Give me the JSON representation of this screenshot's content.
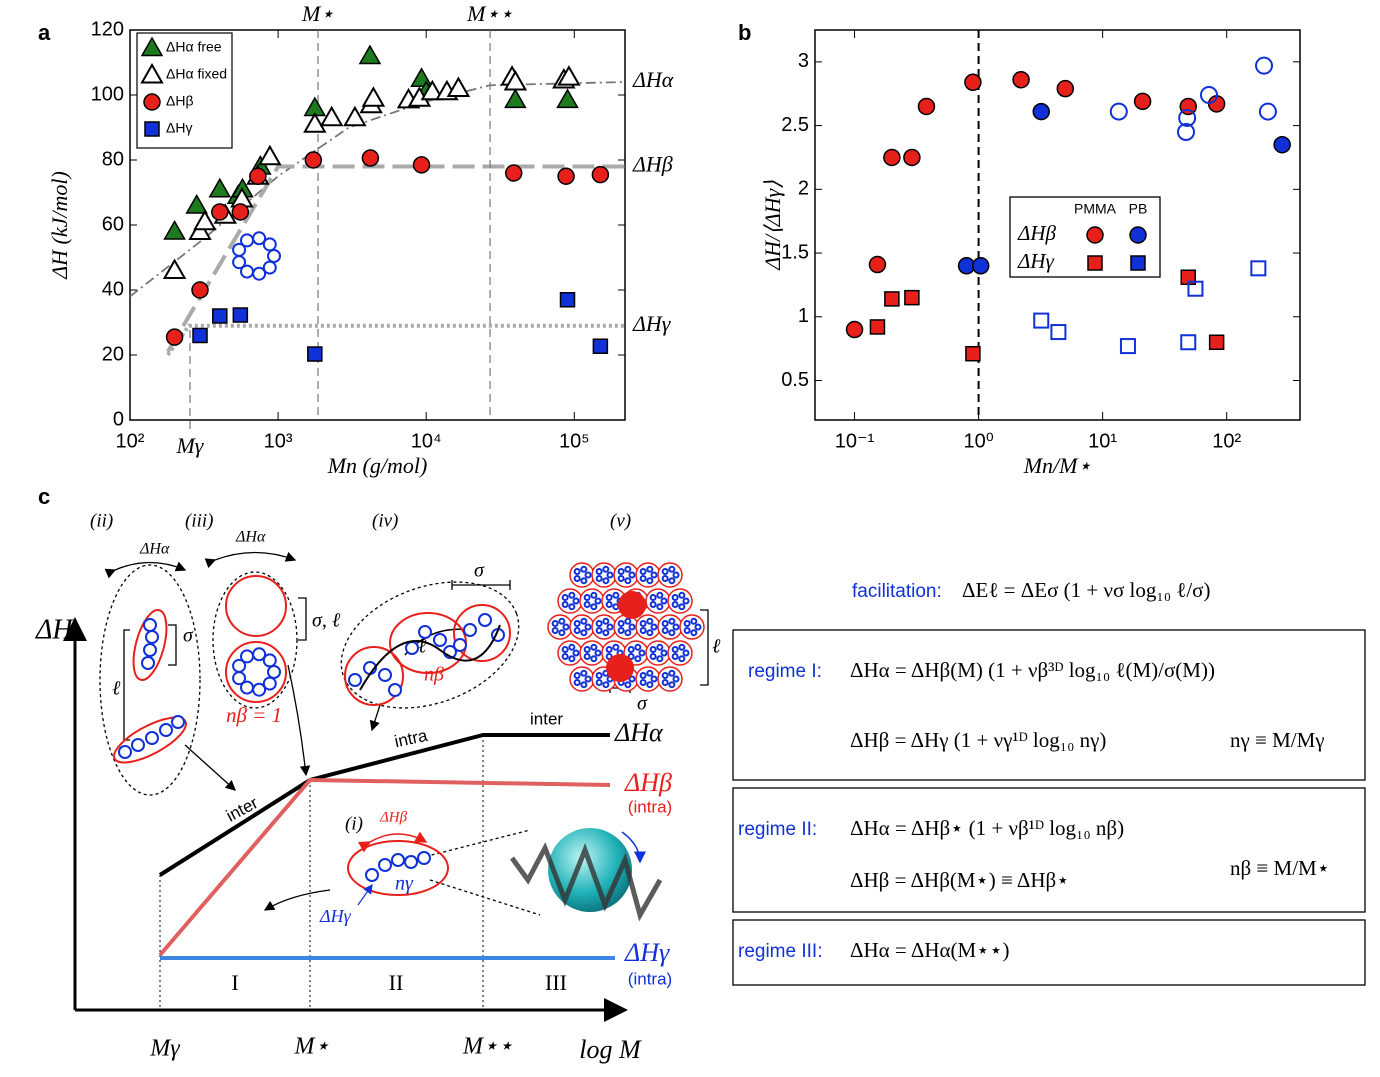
{
  "chart_data": [
    {
      "type": "scatter",
      "panel": "a",
      "xscale": "log",
      "xlim": [
        100,
        220000
      ],
      "ylim": [
        0,
        120
      ],
      "xticks": [
        {
          "value": 100,
          "label": "10²"
        },
        {
          "value": 1000,
          "label": "10³"
        },
        {
          "value": 10000,
          "label": "10⁴"
        },
        {
          "value": 100000,
          "label": "10⁵"
        }
      ],
      "yticks": [
        0,
        20,
        40,
        60,
        80,
        100,
        120
      ],
      "xlabel": "Mn (g/mol)",
      "ylabel": "ΔH (kJ/mol)",
      "series": [
        {
          "name": "ΔHα free",
          "marker": "triangle",
          "filled": true,
          "color": "#1e7a1e",
          "x": [
            200,
            282,
            404,
            537,
            575,
            759,
            1770,
            4170,
            9300,
            10000,
            40000,
            90000
          ],
          "values": [
            58,
            66,
            71,
            69,
            71,
            78,
            96,
            112,
            105,
            101,
            98.5,
            98.5
          ]
        },
        {
          "name": "ΔHα fixed",
          "marker": "triangle",
          "filled": false,
          "color": "#000000",
          "x": [
            200,
            297,
            320,
            440,
            570,
            730,
            880,
            1770,
            2300,
            3300,
            4250,
            4400,
            7600,
            9000,
            11000,
            13800,
            16500,
            38000,
            40000,
            85000,
            92000
          ],
          "values": [
            46,
            58,
            61,
            63,
            68,
            75,
            81,
            91,
            93,
            93,
            97,
            99,
            98.5,
            99,
            101,
            101,
            102,
            105.5,
            104,
            104.6,
            105.5
          ]
        },
        {
          "name": "ΔHβ",
          "marker": "circle",
          "filled": true,
          "color": "#e8201c",
          "x": [
            200,
            297,
            404,
            556,
            730,
            1730,
            4200,
            9300,
            39000,
            88000,
            150000
          ],
          "values": [
            25.5,
            40,
            64,
            64,
            75,
            80,
            80.6,
            78.5,
            76,
            75,
            75.5
          ]
        },
        {
          "name": "ΔHγ",
          "marker": "square",
          "filled": true,
          "color": "#1030d8",
          "x": [
            297,
            404,
            556,
            1770,
            90000,
            150000
          ],
          "values": [
            26,
            32,
            32.3,
            20.3,
            37,
            22.7
          ]
        }
      ],
      "fits": [
        {
          "style": "dashdot",
          "color": "#777777",
          "x": [
            100,
            300,
            1000,
            3000,
            10000,
            27000,
            220000
          ],
          "values": [
            38,
            55,
            75,
            90,
            98,
            103,
            104
          ]
        },
        {
          "style": "dash",
          "color": "#aaaaaa",
          "x": [
            180,
            1000,
            220000
          ],
          "values": [
            21,
            78,
            78
          ]
        },
        {
          "style": "dot",
          "color": "#aaaaaa",
          "x": [
            180,
            250,
            220000
          ],
          "values": [
            20,
            29,
            29
          ]
        }
      ],
      "vlines": [
        {
          "x": 254,
          "label": "Mγ",
          "side": "bottom"
        },
        {
          "x": 1860,
          "label": "M⋆",
          "side": "top"
        },
        {
          "x": 27000,
          "label": "M⋆⋆",
          "side": "top"
        }
      ],
      "annotations": [
        {
          "text": "ΔHα",
          "y": 104
        },
        {
          "text": "ΔHβ",
          "y": 78
        },
        {
          "text": "ΔHγ",
          "y": 29
        }
      ]
    },
    {
      "type": "scatter",
      "panel": "b",
      "xscale": "log",
      "xlim": [
        0.048,
        390
      ],
      "ylim": [
        0.19,
        3.25
      ],
      "xticks": [
        {
          "value": 0.1,
          "label": "10⁻¹"
        },
        {
          "value": 1,
          "label": "10⁰"
        },
        {
          "value": 10,
          "label": "10¹"
        },
        {
          "value": 100,
          "label": "10²"
        }
      ],
      "yticks": [
        0.5,
        1,
        1.5,
        2,
        2.5,
        3
      ],
      "xlabel": "Mn/M⋆",
      "ylabel": "ΔH/⟨ΔHγ⟩",
      "series": [
        {
          "marker": "circle",
          "filled": true,
          "color": "#e8201c",
          "x": [
            0.1,
            0.153,
            0.2,
            0.29,
            0.38,
            0.9,
            2.2,
            5,
            21,
            49,
            83
          ],
          "values": [
            0.9,
            1.41,
            2.25,
            2.25,
            2.65,
            2.84,
            2.86,
            2.79,
            2.69,
            2.65,
            2.67
          ]
        },
        {
          "marker": "circle",
          "filled": true,
          "color": "#1030d8",
          "x": [
            0.8,
            1.04,
            3.2,
            280
          ],
          "values": [
            1.4,
            1.4,
            2.61,
            2.35
          ]
        },
        {
          "marker": "circle",
          "filled": false,
          "color": "#1030d8",
          "x": [
            13.5,
            48,
            47,
            72,
            200,
            215
          ],
          "values": [
            2.61,
            2.56,
            2.45,
            2.74,
            2.97,
            2.61
          ]
        },
        {
          "marker": "square",
          "filled": true,
          "color": "#e8201c",
          "x": [
            0.153,
            0.2,
            0.29,
            0.9,
            49,
            83
          ],
          "values": [
            0.92,
            1.14,
            1.15,
            0.71,
            1.31,
            0.8
          ]
        },
        {
          "marker": "square",
          "filled": false,
          "color": "#1030d8",
          "x": [
            3.2,
            4.4,
            16,
            49,
            56,
            180
          ],
          "values": [
            0.97,
            0.88,
            0.77,
            0.8,
            1.22,
            1.38
          ]
        }
      ],
      "vlines": [
        {
          "x": 1,
          "side": "none"
        }
      ],
      "legend": {
        "columns": [
          "PMMA",
          "PB"
        ],
        "rows": [
          "ΔHβ",
          "ΔHγ"
        ],
        "markers": [
          "circle",
          "square"
        ],
        "colors": [
          "#e8201c",
          "#1030d8"
        ]
      }
    }
  ],
  "panels": {
    "c": "c"
  },
  "diagram": {
    "stages": [
      "(i)",
      "(ii)",
      "(iii)",
      "(iv)",
      "(v)"
    ],
    "axis": {
      "y": "ΔH",
      "x": "log M"
    },
    "x_marks": [
      "Mγ",
      "M⋆",
      "M⋆⋆"
    ],
    "regimes": [
      "I",
      "II",
      "III"
    ],
    "segments": [
      "inter",
      "intra",
      "inter"
    ],
    "curves": {
      "alpha": "ΔHα",
      "beta": "ΔHβ",
      "beta_note": "(intra)",
      "gamma": "ΔHγ",
      "gamma_note": "(intra)"
    },
    "sketch": {
      "dHa1": "ΔHα",
      "dHa2": "ΔHα",
      "sigma_ii": "σ",
      "ell_ii": "ℓ",
      "sigma_ell": "σ, ℓ",
      "nb1": "nβ = 1",
      "sigma_iv": "σ",
      "ell_iv": "ℓ",
      "nb": "nβ",
      "dHb": "ΔHβ",
      "ng": "nγ",
      "dHg": "ΔHγ",
      "ell_v": "ℓ",
      "sigma_v": "σ"
    }
  },
  "equations": {
    "facilitation": {
      "label": "facilitation:",
      "formula": "ΔEℓ = ΔEσ (1 + νσ log₁₀ ℓ/σ)"
    },
    "regime_I": {
      "label": "regime I:",
      "lines": [
        "ΔHα = ΔHβ(M) (1 + νβ³ᴰ log₁₀ ℓ(M)/σ(M))",
        "ΔHβ = ΔHγ (1 + νγ¹ᴰ log₁₀ nγ)"
      ],
      "def": "nγ ≡ M/Mγ"
    },
    "regime_II": {
      "label": "regime II:",
      "lines": [
        "ΔHα = ΔHβ⋆ (1 + νβ¹ᴰ log₁₀ nβ)",
        "ΔHβ = ΔHβ(M⋆) ≡ ΔHβ⋆"
      ],
      "def": "nβ ≡ M/M⋆"
    },
    "regime_III": {
      "label": "regime III:",
      "lines": [
        "ΔHα = ΔHα(M⋆⋆)"
      ]
    }
  }
}
